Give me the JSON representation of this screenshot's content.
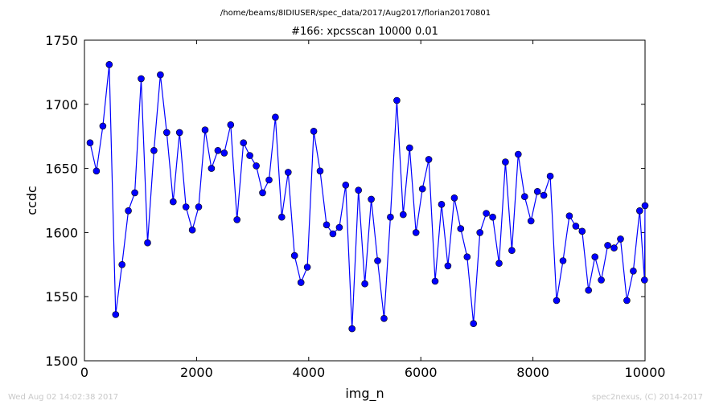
{
  "header": {
    "path": "/home/beams/8IDIUSER/spec_data/2017/Aug2017/florian20170801"
  },
  "footer": {
    "timestamp": "Wed Aug 02 14:02:38 2017",
    "credit": "spec2nexus, (C) 2014-2017"
  },
  "chart_data": {
    "type": "line",
    "title": "#166: xpcsscan 10000 0.01",
    "xlabel": "img_n",
    "ylabel": "ccdc",
    "xlim": [
      0,
      10000
    ],
    "ylim": [
      1500,
      1750
    ],
    "xticks": [
      0,
      2000,
      4000,
      6000,
      8000,
      10000
    ],
    "yticks": [
      1500,
      1550,
      1600,
      1650,
      1700,
      1750
    ],
    "xtick_labels": [
      "0",
      "2000",
      "4000",
      "6000",
      "8000",
      "10000"
    ],
    "ytick_labels": [
      "1500",
      "1550",
      "1600",
      "1650",
      "1700",
      "1750"
    ],
    "grid": false,
    "legend": "none",
    "colors": {
      "line": "#0000ff",
      "marker": "#0000ff",
      "marker_edge": "#000000"
    },
    "series": [
      {
        "x": [
          100,
          214,
          328,
          442,
          556,
          670,
          784,
          898,
          1012,
          1126,
          1240,
          1354,
          1468,
          1582,
          1696,
          1810,
          1924,
          2038,
          2152,
          2266,
          2380,
          2494,
          2608,
          2722,
          2836,
          2950,
          3064,
          3178,
          3292,
          3406,
          3520,
          3634,
          3748,
          3862,
          3976,
          4090,
          4204,
          4318,
          4432,
          4546,
          4660,
          4774,
          4888,
          5002,
          5116,
          5230,
          5344,
          5458,
          5572,
          5686,
          5800,
          5914,
          6028,
          6142,
          6256,
          6370,
          6484,
          6598,
          6712,
          6826,
          6940,
          7054,
          7168,
          7282,
          7396,
          7510,
          7624,
          7738,
          7852,
          7966,
          8080,
          8194,
          8308,
          8422,
          8536,
          8650,
          8764,
          8878,
          8992,
          9106,
          9220,
          9334,
          9448,
          9562,
          9676,
          9790,
          9904,
          9990,
          10000
        ],
        "y": [
          1670,
          1648,
          1683,
          1731,
          1536,
          1575,
          1617,
          1631,
          1720,
          1592,
          1664,
          1723,
          1678,
          1624,
          1678,
          1620,
          1602,
          1620,
          1680,
          1650,
          1664,
          1662,
          1684,
          1610,
          1670,
          1660,
          1652,
          1631,
          1641,
          1690,
          1612,
          1647,
          1582,
          1561,
          1573,
          1679,
          1648,
          1606,
          1599,
          1604,
          1637,
          1525,
          1633,
          1560,
          1626,
          1578,
          1533,
          1612,
          1703,
          1614,
          1666,
          1600,
          1634,
          1657,
          1562,
          1622,
          1574,
          1627,
          1603,
          1581,
          1529,
          1600,
          1615,
          1612,
          1576,
          1655,
          1586,
          1661,
          1628,
          1609,
          1632,
          1629,
          1644,
          1547,
          1578,
          1613,
          1605,
          1601,
          1555,
          1581,
          1563,
          1590,
          1588,
          1595,
          1547,
          1570,
          1617,
          1563,
          1621
        ]
      }
    ]
  }
}
